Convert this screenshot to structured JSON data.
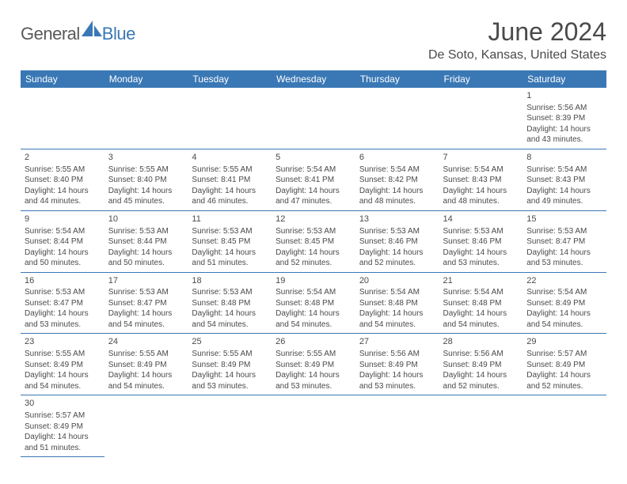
{
  "logo": {
    "part1": "General",
    "part2": "Blue"
  },
  "title": "June 2024",
  "location": "De Soto, Kansas, United States",
  "header_bg": "#3a78b5",
  "header_color": "#ffffff",
  "border_color": "#3a78b5",
  "text_color": "#4a4a4a",
  "cell_fontsize": 10,
  "daynum_fontsize": 11,
  "days_of_week": [
    "Sunday",
    "Monday",
    "Tuesday",
    "Wednesday",
    "Thursday",
    "Friday",
    "Saturday"
  ],
  "first_weekday_index": 6,
  "num_days": 30,
  "days": {
    "1": {
      "sunrise": "5:56 AM",
      "sunset": "8:39 PM",
      "daylight": "14 hours and 43 minutes."
    },
    "2": {
      "sunrise": "5:55 AM",
      "sunset": "8:40 PM",
      "daylight": "14 hours and 44 minutes."
    },
    "3": {
      "sunrise": "5:55 AM",
      "sunset": "8:40 PM",
      "daylight": "14 hours and 45 minutes."
    },
    "4": {
      "sunrise": "5:55 AM",
      "sunset": "8:41 PM",
      "daylight": "14 hours and 46 minutes."
    },
    "5": {
      "sunrise": "5:54 AM",
      "sunset": "8:41 PM",
      "daylight": "14 hours and 47 minutes."
    },
    "6": {
      "sunrise": "5:54 AM",
      "sunset": "8:42 PM",
      "daylight": "14 hours and 48 minutes."
    },
    "7": {
      "sunrise": "5:54 AM",
      "sunset": "8:43 PM",
      "daylight": "14 hours and 48 minutes."
    },
    "8": {
      "sunrise": "5:54 AM",
      "sunset": "8:43 PM",
      "daylight": "14 hours and 49 minutes."
    },
    "9": {
      "sunrise": "5:54 AM",
      "sunset": "8:44 PM",
      "daylight": "14 hours and 50 minutes."
    },
    "10": {
      "sunrise": "5:53 AM",
      "sunset": "8:44 PM",
      "daylight": "14 hours and 50 minutes."
    },
    "11": {
      "sunrise": "5:53 AM",
      "sunset": "8:45 PM",
      "daylight": "14 hours and 51 minutes."
    },
    "12": {
      "sunrise": "5:53 AM",
      "sunset": "8:45 PM",
      "daylight": "14 hours and 52 minutes."
    },
    "13": {
      "sunrise": "5:53 AM",
      "sunset": "8:46 PM",
      "daylight": "14 hours and 52 minutes."
    },
    "14": {
      "sunrise": "5:53 AM",
      "sunset": "8:46 PM",
      "daylight": "14 hours and 53 minutes."
    },
    "15": {
      "sunrise": "5:53 AM",
      "sunset": "8:47 PM",
      "daylight": "14 hours and 53 minutes."
    },
    "16": {
      "sunrise": "5:53 AM",
      "sunset": "8:47 PM",
      "daylight": "14 hours and 53 minutes."
    },
    "17": {
      "sunrise": "5:53 AM",
      "sunset": "8:47 PM",
      "daylight": "14 hours and 54 minutes."
    },
    "18": {
      "sunrise": "5:53 AM",
      "sunset": "8:48 PM",
      "daylight": "14 hours and 54 minutes."
    },
    "19": {
      "sunrise": "5:54 AM",
      "sunset": "8:48 PM",
      "daylight": "14 hours and 54 minutes."
    },
    "20": {
      "sunrise": "5:54 AM",
      "sunset": "8:48 PM",
      "daylight": "14 hours and 54 minutes."
    },
    "21": {
      "sunrise": "5:54 AM",
      "sunset": "8:48 PM",
      "daylight": "14 hours and 54 minutes."
    },
    "22": {
      "sunrise": "5:54 AM",
      "sunset": "8:49 PM",
      "daylight": "14 hours and 54 minutes."
    },
    "23": {
      "sunrise": "5:55 AM",
      "sunset": "8:49 PM",
      "daylight": "14 hours and 54 minutes."
    },
    "24": {
      "sunrise": "5:55 AM",
      "sunset": "8:49 PM",
      "daylight": "14 hours and 54 minutes."
    },
    "25": {
      "sunrise": "5:55 AM",
      "sunset": "8:49 PM",
      "daylight": "14 hours and 53 minutes."
    },
    "26": {
      "sunrise": "5:55 AM",
      "sunset": "8:49 PM",
      "daylight": "14 hours and 53 minutes."
    },
    "27": {
      "sunrise": "5:56 AM",
      "sunset": "8:49 PM",
      "daylight": "14 hours and 53 minutes."
    },
    "28": {
      "sunrise": "5:56 AM",
      "sunset": "8:49 PM",
      "daylight": "14 hours and 52 minutes."
    },
    "29": {
      "sunrise": "5:57 AM",
      "sunset": "8:49 PM",
      "daylight": "14 hours and 52 minutes."
    },
    "30": {
      "sunrise": "5:57 AM",
      "sunset": "8:49 PM",
      "daylight": "14 hours and 51 minutes."
    }
  },
  "labels": {
    "sunrise": "Sunrise:",
    "sunset": "Sunset:",
    "daylight": "Daylight:"
  }
}
